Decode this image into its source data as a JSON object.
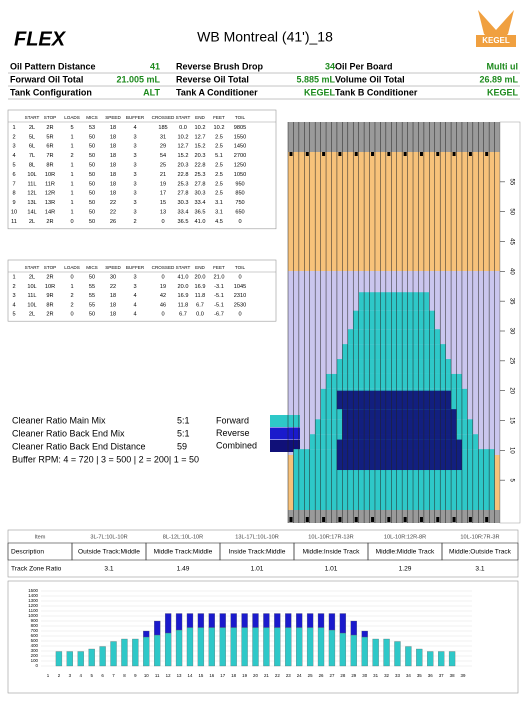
{
  "header": {
    "logo": "FLEX",
    "title": "WB Montreal (41')_18",
    "brand": "KEGEL"
  },
  "info": [
    [
      {
        "label": "Oil Pattern Distance",
        "value": "41"
      },
      {
        "label": "Reverse Brush Drop",
        "value": "34"
      },
      {
        "label": "Oil Per Board",
        "value": "Multi ul"
      }
    ],
    [
      {
        "label": "Forward Oil Total",
        "value": "21.005 mL"
      },
      {
        "label": "Reverse Oil Total",
        "value": "5.885 mL"
      },
      {
        "label": "Volume Oil Total",
        "value": "26.89 mL"
      }
    ],
    [
      {
        "label": "Tank Configuration",
        "value": "ALT"
      },
      {
        "label": "Tank A Conditioner",
        "value": "KEGEL"
      },
      {
        "label": "Tank B Conditioner",
        "value": "KEGEL"
      }
    ]
  ],
  "forward": {
    "columns": [
      "START",
      "STOP",
      "LOADS",
      "MICS",
      "SPEED",
      "BUFFER",
      "CROSSED",
      "START",
      "END",
      "FEET",
      "TOIL"
    ],
    "rows": [
      [
        "1",
        "2L",
        "2R",
        "5",
        "53",
        "18",
        "4",
        "185",
        "0.0",
        "10.2",
        "10.2",
        "9805"
      ],
      [
        "2",
        "5L",
        "5R",
        "1",
        "50",
        "18",
        "3",
        "31",
        "10.2",
        "12.7",
        "2.5",
        "1550"
      ],
      [
        "3",
        "6L",
        "6R",
        "1",
        "50",
        "18",
        "3",
        "29",
        "12.7",
        "15.2",
        "2.5",
        "1450"
      ],
      [
        "4",
        "7L",
        "7R",
        "2",
        "50",
        "18",
        "3",
        "54",
        "15.2",
        "20.3",
        "5.1",
        "2700"
      ],
      [
        "5",
        "8L",
        "8R",
        "1",
        "50",
        "18",
        "3",
        "25",
        "20.3",
        "22.8",
        "2.5",
        "1250"
      ],
      [
        "6",
        "10L",
        "10R",
        "1",
        "50",
        "18",
        "3",
        "21",
        "22.8",
        "25.3",
        "2.5",
        "1050"
      ],
      [
        "7",
        "11L",
        "11R",
        "1",
        "50",
        "18",
        "3",
        "19",
        "25.3",
        "27.8",
        "2.5",
        "950"
      ],
      [
        "8",
        "12L",
        "12R",
        "1",
        "50",
        "18",
        "3",
        "17",
        "27.8",
        "30.3",
        "2.5",
        "850"
      ],
      [
        "9",
        "13L",
        "13R",
        "1",
        "50",
        "22",
        "3",
        "15",
        "30.3",
        "33.4",
        "3.1",
        "750"
      ],
      [
        "10",
        "14L",
        "14R",
        "1",
        "50",
        "22",
        "3",
        "13",
        "33.4",
        "36.5",
        "3.1",
        "650"
      ],
      [
        "11",
        "2L",
        "2R",
        "0",
        "50",
        "26",
        "2",
        "0",
        "36.5",
        "41.0",
        "4.5",
        "0"
      ]
    ]
  },
  "reverse": {
    "columns": [
      "START",
      "STOP",
      "LOADS",
      "MICS",
      "SPEED",
      "BUFFER",
      "CROSSED",
      "START",
      "END",
      "FEET",
      "TOIL"
    ],
    "rows": [
      [
        "1",
        "2L",
        "2R",
        "0",
        "50",
        "30",
        "3",
        "0",
        "41.0",
        "20.0",
        "21.0",
        "0"
      ],
      [
        "2",
        "10L",
        "10R",
        "1",
        "55",
        "22",
        "3",
        "19",
        "20.0",
        "16.9",
        "-3.1",
        "1045"
      ],
      [
        "3",
        "11L",
        "9R",
        "2",
        "55",
        "18",
        "4",
        "42",
        "16.9",
        "11.8",
        "-5.1",
        "2310"
      ],
      [
        "4",
        "10L",
        "8R",
        "2",
        "55",
        "18",
        "4",
        "46",
        "11.8",
        "6.7",
        "-5.1",
        "2530"
      ],
      [
        "5",
        "2L",
        "2R",
        "0",
        "50",
        "18",
        "4",
        "0",
        "6.7",
        "0.0",
        "-6.7",
        "0"
      ]
    ]
  },
  "cleaner": [
    {
      "label": "Cleaner Ratio Main Mix",
      "value": "5:1"
    },
    {
      "label": "Cleaner Ratio Back End Mix",
      "value": "5:1"
    },
    {
      "label": "Cleaner Ratio Back End Distance",
      "value": "59"
    }
  ],
  "buffer_rpm": "Buffer RPM: 4 = 720 | 3 = 500 | 2 = 200| 1 = 50",
  "legend": [
    {
      "name": "Forward",
      "color": "#2ec8c8"
    },
    {
      "name": "Reverse",
      "color": "#1a1acc"
    },
    {
      "name": "Combined",
      "color": "#101078"
    }
  ],
  "lane_axis": {
    "lim": [
      0,
      60
    ],
    "ticks": [
      5,
      10,
      15,
      20,
      25,
      30,
      35,
      40,
      45,
      50,
      55
    ]
  },
  "zones": {
    "columns": [
      "Item",
      "3L-7L:10L-10R",
      "8L-12L:10L-10R",
      "13L-17L:10L-10R",
      "10L-10R:17R-13R",
      "10L-10R:12R-8R",
      "10L-10R:7R-3R"
    ],
    "rows": [
      [
        "Description",
        "Outside Track:Middle",
        "Middle Track:Middle",
        "Inside Track:Middle",
        "Middle:Inside Track",
        "Middle:Middle Track",
        "Middle:Outside Track"
      ],
      [
        "Track Zone Ratio",
        "3.1",
        "1.49",
        "1.01",
        "1.01",
        "1.29",
        "3.1"
      ]
    ]
  },
  "chart_data": {
    "type": "bar",
    "categories": [
      "1",
      "2",
      "3",
      "4",
      "5",
      "6",
      "7",
      "8",
      "9",
      "10",
      "11",
      "12",
      "13",
      "14",
      "15",
      "16",
      "17",
      "18",
      "19",
      "20",
      "21",
      "22",
      "23",
      "24",
      "25",
      "26",
      "27",
      "28",
      "29",
      "30",
      "31",
      "32",
      "33",
      "34",
      "35",
      "36",
      "37",
      "38",
      "39"
    ],
    "series": [
      {
        "color": "#2ec8c8",
        "values": [
          0,
          290,
          290,
          290,
          340,
          390,
          490,
          540,
          540,
          580,
          620,
          660,
          720,
          770,
          770,
          770,
          770,
          770,
          770,
          770,
          770,
          770,
          770,
          770,
          770,
          770,
          720,
          660,
          620,
          580,
          540,
          540,
          490,
          390,
          340,
          290,
          290,
          290,
          0
        ]
      },
      {
        "color": "#1a1acc",
        "values": [
          0,
          0,
          0,
          0,
          0,
          0,
          0,
          0,
          0,
          120,
          280,
          390,
          330,
          280,
          280,
          280,
          280,
          280,
          280,
          280,
          280,
          280,
          280,
          280,
          280,
          280,
          330,
          390,
          280,
          120,
          0,
          0,
          0,
          0,
          0,
          0,
          0,
          0,
          0
        ]
      }
    ],
    "ylim": [
      0,
      1500
    ],
    "yticks": [
      0,
      100,
      200,
      300,
      400,
      500,
      600,
      700,
      800,
      900,
      1000,
      1100,
      1200,
      1300,
      1400,
      1500
    ],
    "grid": true
  }
}
